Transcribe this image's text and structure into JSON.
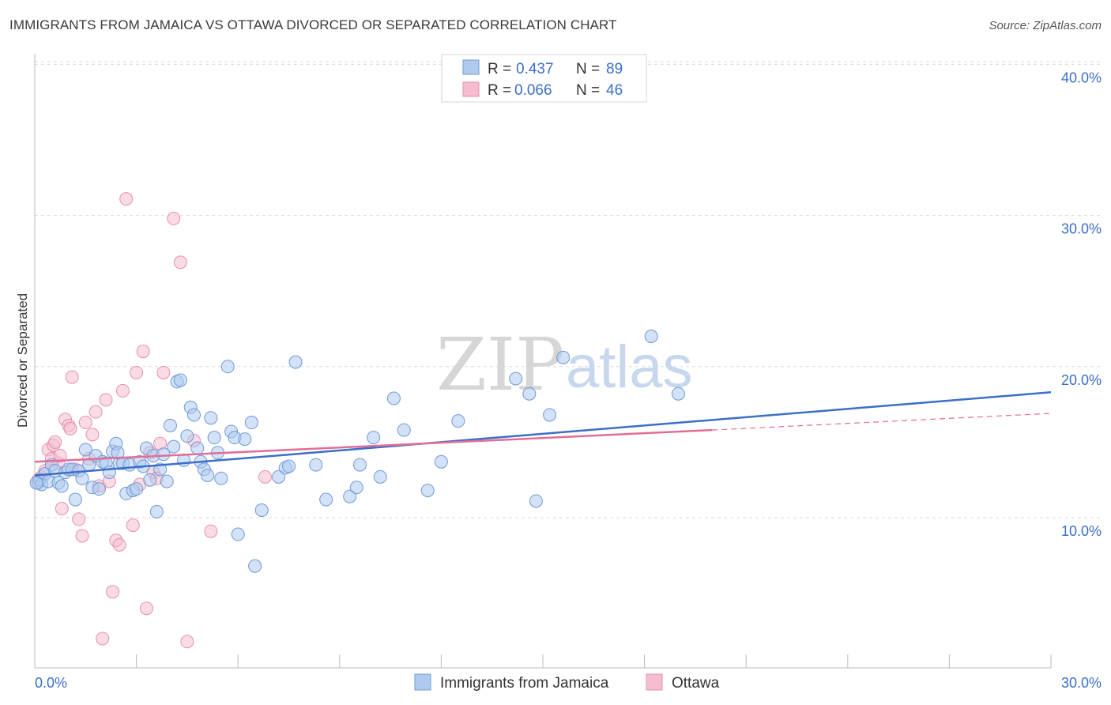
{
  "title": "IMMIGRANTS FROM JAMAICA VS OTTAWA DIVORCED OR SEPARATED CORRELATION CHART",
  "source": "Source: ZipAtlas.com",
  "watermark": {
    "zip": "ZIP",
    "atlas": "atlas"
  },
  "colors": {
    "blue": "#3b6fc8",
    "pink": "#e26d98",
    "blue_fill": "#aecbef",
    "pink_fill": "#f6bdd0"
  },
  "legend": {
    "r_label": "R =",
    "n_label": "N =",
    "rows": [
      {
        "r": "0.437",
        "n": "89"
      },
      {
        "r": "0.066",
        "n": "46"
      }
    ]
  },
  "chart_data": {
    "type": "scatter",
    "title": "IMMIGRANTS FROM JAMAICA VS OTTAWA DIVORCED OR SEPARATED CORRELATION CHART",
    "xlabel": "",
    "ylabel": "Divorced or Separated",
    "xlim": [
      0,
      30
    ],
    "ylim": [
      0,
      42
    ],
    "x_tick_labels": [
      "0.0%",
      "30.0%"
    ],
    "y_ticks": [
      10,
      20,
      30,
      40
    ],
    "y_tick_labels": [
      "10.0%",
      "20.0%",
      "30.0%",
      "40.0%"
    ],
    "series": [
      {
        "name": "Immigrants from Jamaica",
        "color": "blue",
        "trend": {
          "x": [
            0,
            30
          ],
          "y": [
            12.8,
            18.3
          ],
          "dashed_from": null
        },
        "points": [
          [
            0.1,
            12.3
          ],
          [
            0.15,
            12.5
          ],
          [
            0.2,
            12.2
          ],
          [
            0.3,
            12.9
          ],
          [
            0.4,
            12.4
          ],
          [
            0.5,
            13.5
          ],
          [
            0.6,
            13.1
          ],
          [
            0.7,
            12.3
          ],
          [
            0.8,
            12.1
          ],
          [
            0.9,
            13.0
          ],
          [
            1.0,
            13.2
          ],
          [
            1.1,
            13.2
          ],
          [
            1.2,
            11.2
          ],
          [
            1.3,
            13.1
          ],
          [
            1.4,
            12.6
          ],
          [
            1.5,
            14.5
          ],
          [
            1.6,
            13.5
          ],
          [
            1.7,
            12.0
          ],
          [
            1.8,
            14.1
          ],
          [
            1.9,
            11.9
          ],
          [
            2.0,
            13.7
          ],
          [
            2.1,
            13.6
          ],
          [
            2.2,
            13.0
          ],
          [
            2.3,
            14.4
          ],
          [
            2.4,
            14.9
          ],
          [
            2.5,
            13.6
          ],
          [
            2.6,
            13.6
          ],
          [
            2.7,
            11.6
          ],
          [
            2.8,
            13.5
          ],
          [
            2.9,
            11.8
          ],
          [
            3.0,
            11.9
          ],
          [
            3.1,
            13.7
          ],
          [
            3.2,
            13.4
          ],
          [
            3.3,
            14.6
          ],
          [
            3.4,
            12.5
          ],
          [
            3.5,
            14.1
          ],
          [
            3.6,
            10.4
          ],
          [
            3.7,
            13.2
          ],
          [
            3.8,
            14.2
          ],
          [
            3.9,
            12.4
          ],
          [
            4.0,
            16.1
          ],
          [
            4.1,
            14.7
          ],
          [
            4.2,
            19.0
          ],
          [
            4.3,
            19.1
          ],
          [
            4.4,
            13.8
          ],
          [
            4.5,
            15.4
          ],
          [
            4.6,
            17.3
          ],
          [
            4.7,
            16.8
          ],
          [
            4.8,
            14.6
          ],
          [
            4.9,
            13.7
          ],
          [
            5.0,
            13.2
          ],
          [
            5.1,
            12.8
          ],
          [
            5.2,
            16.6
          ],
          [
            5.3,
            15.3
          ],
          [
            5.4,
            14.3
          ],
          [
            5.5,
            12.6
          ],
          [
            5.7,
            20.0
          ],
          [
            5.8,
            15.7
          ],
          [
            5.9,
            15.3
          ],
          [
            6.0,
            8.9
          ],
          [
            6.2,
            15.2
          ],
          [
            6.4,
            16.3
          ],
          [
            6.5,
            6.8
          ],
          [
            6.7,
            10.5
          ],
          [
            7.2,
            12.7
          ],
          [
            7.4,
            13.3
          ],
          [
            7.5,
            13.4
          ],
          [
            7.7,
            20.3
          ],
          [
            8.3,
            13.5
          ],
          [
            8.6,
            11.2
          ],
          [
            9.3,
            11.4
          ],
          [
            9.5,
            12.0
          ],
          [
            9.6,
            13.5
          ],
          [
            10.0,
            15.3
          ],
          [
            10.2,
            12.7
          ],
          [
            10.6,
            17.9
          ],
          [
            10.9,
            15.8
          ],
          [
            11.6,
            11.8
          ],
          [
            12.0,
            13.7
          ],
          [
            12.5,
            16.4
          ],
          [
            14.2,
            19.2
          ],
          [
            14.6,
            18.2
          ],
          [
            14.8,
            11.1
          ],
          [
            15.2,
            16.8
          ],
          [
            15.6,
            20.6
          ],
          [
            18.2,
            22.0
          ],
          [
            19.0,
            18.2
          ],
          [
            0.05,
            12.3
          ],
          [
            2.45,
            14.3
          ]
        ]
      },
      {
        "name": "Ottawa",
        "color": "pink",
        "trend": {
          "x": [
            0,
            20
          ],
          "y": [
            13.7,
            15.8
          ],
          "dashed_from": 20,
          "dashed_to": [
            30,
            16.9
          ]
        },
        "points": [
          [
            0.1,
            12.5
          ],
          [
            0.2,
            12.7
          ],
          [
            0.3,
            13.1
          ],
          [
            0.4,
            14.5
          ],
          [
            0.5,
            13.9
          ],
          [
            0.55,
            14.8
          ],
          [
            0.6,
            15.0
          ],
          [
            0.7,
            13.6
          ],
          [
            0.75,
            14.1
          ],
          [
            0.8,
            10.6
          ],
          [
            0.9,
            16.5
          ],
          [
            1.0,
            16.1
          ],
          [
            1.05,
            15.9
          ],
          [
            1.1,
            19.3
          ],
          [
            1.2,
            13.2
          ],
          [
            1.3,
            9.9
          ],
          [
            1.4,
            8.8
          ],
          [
            1.5,
            16.3
          ],
          [
            1.6,
            13.9
          ],
          [
            1.7,
            15.5
          ],
          [
            1.8,
            17.0
          ],
          [
            1.9,
            12.1
          ],
          [
            2.0,
            2.0
          ],
          [
            2.1,
            17.8
          ],
          [
            2.2,
            12.4
          ],
          [
            2.3,
            5.1
          ],
          [
            2.4,
            8.5
          ],
          [
            2.5,
            8.2
          ],
          [
            2.6,
            18.4
          ],
          [
            2.7,
            31.1
          ],
          [
            2.9,
            9.5
          ],
          [
            3.0,
            19.6
          ],
          [
            3.1,
            12.2
          ],
          [
            3.2,
            21.0
          ],
          [
            3.3,
            4.0
          ],
          [
            3.4,
            14.3
          ],
          [
            3.5,
            13.0
          ],
          [
            3.6,
            12.6
          ],
          [
            3.7,
            14.9
          ],
          [
            3.8,
            19.6
          ],
          [
            4.1,
            29.8
          ],
          [
            4.3,
            26.9
          ],
          [
            4.5,
            1.8
          ],
          [
            4.7,
            15.1
          ],
          [
            5.2,
            9.1
          ],
          [
            6.8,
            12.7
          ]
        ]
      }
    ]
  }
}
